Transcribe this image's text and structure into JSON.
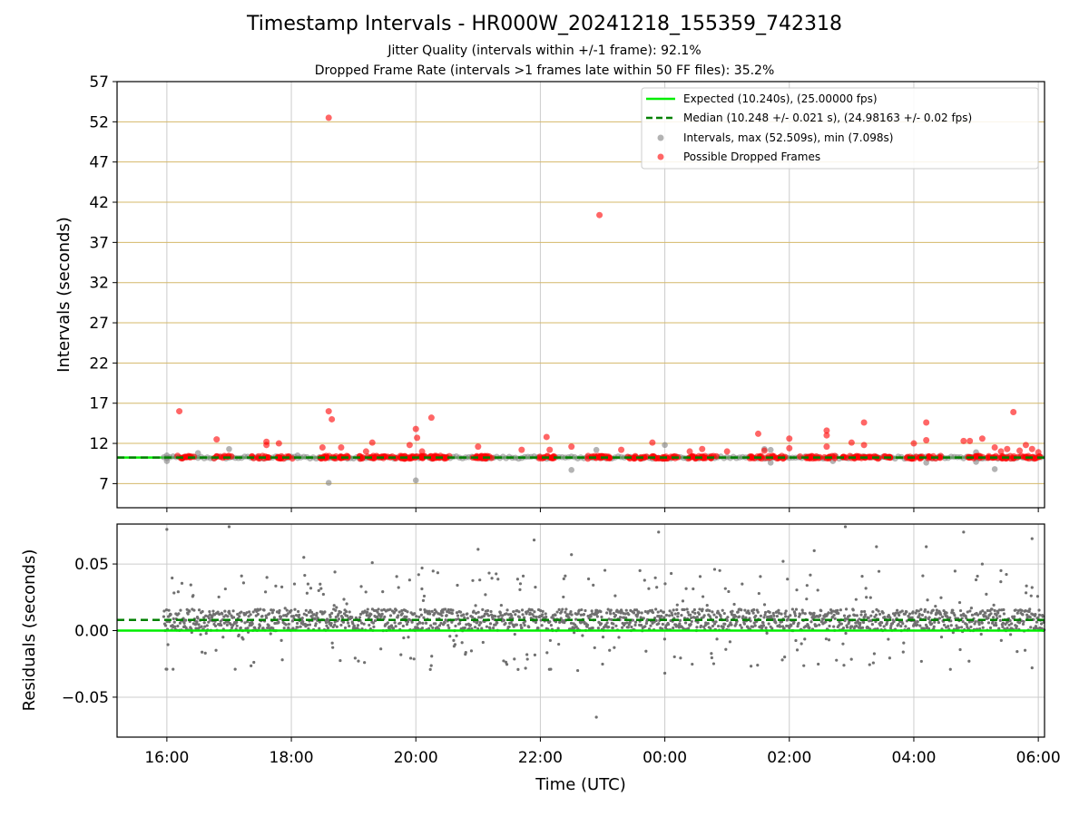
{
  "page": {
    "title": "Timestamp Intervals - HR000W_20241218_155359_742318",
    "subtitle_1": "Jitter Quality (intervals within +/-1 frame): 92.1%",
    "subtitle_2": "Dropped Frame Rate (intervals >1 frames late within 50 FF files): 35.2%"
  },
  "chart_data": [
    {
      "type": "scatter",
      "panel": "top",
      "ylabel": "Intervals (seconds)",
      "ylim": [
        4,
        57
      ],
      "xlim": [
        15.2,
        30.1
      ],
      "yticks": [
        7,
        12,
        17,
        22,
        27,
        32,
        37,
        42,
        47,
        52,
        57
      ],
      "grid": "horizontal tan lines at y ticks, vertical grey lines at x ticks",
      "legend_placement": "top-right",
      "colors": {
        "expected": "#00ee00",
        "median": "#008000",
        "intervals": "#808080",
        "dropped": "#ff0000",
        "grid_h": "#d4b86a",
        "grid_v": "#cccccc"
      },
      "reference_lines": {
        "expected_y": 10.24,
        "median_y": 10.248
      },
      "legend": [
        {
          "key": "expected",
          "label": "Expected (10.240s), (25.00000 fps)"
        },
        {
          "key": "median",
          "label": "Median (10.248 +/- 0.021 s), (24.98163 +/- 0.02 fps)"
        },
        {
          "key": "intervals",
          "label": "Intervals, max (52.509s), min (7.098s)"
        },
        {
          "key": "dropped",
          "label": "Possible Dropped Frames"
        }
      ],
      "dropped_clusters_x": [
        16.3,
        16.9,
        17.5,
        17.9,
        18.6,
        18.8,
        19.2,
        19.5,
        19.8,
        20.0,
        20.2,
        20.4,
        21.0,
        21.1,
        22.1,
        22.9,
        23.1,
        23.5,
        23.8,
        24.1,
        24.5,
        24.7,
        25.5,
        25.8,
        26.3,
        26.6,
        27.0,
        27.2,
        27.5,
        28.0,
        28.3,
        29.0,
        29.3,
        29.6,
        29.9
      ],
      "dropped_outliers": [
        {
          "x": 16.2,
          "y": 16.0
        },
        {
          "x": 16.8,
          "y": 12.5
        },
        {
          "x": 17.6,
          "y": 12.2
        },
        {
          "x": 17.8,
          "y": 12.0
        },
        {
          "x": 17.6,
          "y": 11.8
        },
        {
          "x": 18.5,
          "y": 11.5
        },
        {
          "x": 18.6,
          "y": 52.5
        },
        {
          "x": 18.6,
          "y": 16.0
        },
        {
          "x": 18.65,
          "y": 15.0
        },
        {
          "x": 18.8,
          "y": 11.5
        },
        {
          "x": 19.3,
          "y": 12.1
        },
        {
          "x": 19.2,
          "y": 11.0
        },
        {
          "x": 19.9,
          "y": 11.8
        },
        {
          "x": 20.0,
          "y": 13.8
        },
        {
          "x": 20.02,
          "y": 12.7
        },
        {
          "x": 20.1,
          "y": 11.0
        },
        {
          "x": 20.25,
          "y": 15.2
        },
        {
          "x": 21.0,
          "y": 11.6
        },
        {
          "x": 21.7,
          "y": 11.2
        },
        {
          "x": 22.1,
          "y": 12.8
        },
        {
          "x": 22.15,
          "y": 11.2
        },
        {
          "x": 22.5,
          "y": 11.6
        },
        {
          "x": 22.95,
          "y": 40.4
        },
        {
          "x": 23.3,
          "y": 11.2
        },
        {
          "x": 23.8,
          "y": 12.1
        },
        {
          "x": 24.4,
          "y": 11.0
        },
        {
          "x": 24.6,
          "y": 11.3
        },
        {
          "x": 25.0,
          "y": 11.0
        },
        {
          "x": 25.6,
          "y": 11.1
        },
        {
          "x": 25.5,
          "y": 13.2
        },
        {
          "x": 26.0,
          "y": 12.6
        },
        {
          "x": 26.0,
          "y": 11.4
        },
        {
          "x": 26.6,
          "y": 13.6
        },
        {
          "x": 26.6,
          "y": 13.0
        },
        {
          "x": 26.6,
          "y": 11.6
        },
        {
          "x": 27.0,
          "y": 12.1
        },
        {
          "x": 27.2,
          "y": 14.6
        },
        {
          "x": 27.2,
          "y": 11.8
        },
        {
          "x": 28.0,
          "y": 12.0
        },
        {
          "x": 28.2,
          "y": 14.6
        },
        {
          "x": 28.2,
          "y": 12.4
        },
        {
          "x": 28.8,
          "y": 12.3
        },
        {
          "x": 28.9,
          "y": 12.3
        },
        {
          "x": 29.1,
          "y": 12.6
        },
        {
          "x": 29.3,
          "y": 11.5
        },
        {
          "x": 29.4,
          "y": 11.0
        },
        {
          "x": 29.5,
          "y": 11.3
        },
        {
          "x": 29.6,
          "y": 15.9
        },
        {
          "x": 29.7,
          "y": 11.1
        },
        {
          "x": 29.8,
          "y": 11.8
        },
        {
          "x": 29.9,
          "y": 11.3
        },
        {
          "x": 30.0,
          "y": 10.9
        }
      ],
      "interval_outliers": [
        {
          "x": 16.0,
          "y": 9.8
        },
        {
          "x": 16.0,
          "y": 10.5
        },
        {
          "x": 16.5,
          "y": 10.8
        },
        {
          "x": 17.0,
          "y": 11.3
        },
        {
          "x": 18.1,
          "y": 10.5
        },
        {
          "x": 18.6,
          "y": 7.1
        },
        {
          "x": 20.0,
          "y": 7.4
        },
        {
          "x": 22.5,
          "y": 8.7
        },
        {
          "x": 22.9,
          "y": 11.2
        },
        {
          "x": 24.0,
          "y": 11.8
        },
        {
          "x": 25.6,
          "y": 11.3
        },
        {
          "x": 25.7,
          "y": 9.6
        },
        {
          "x": 25.7,
          "y": 11.2
        },
        {
          "x": 26.7,
          "y": 9.8
        },
        {
          "x": 28.2,
          "y": 9.6
        },
        {
          "x": 29.0,
          "y": 9.7
        },
        {
          "x": 29.3,
          "y": 8.8
        },
        {
          "x": 29.0,
          "y": 10.9
        }
      ]
    },
    {
      "type": "scatter",
      "panel": "bottom",
      "ylabel": "Residuals (seconds)",
      "xlabel": "Time (UTC)",
      "ylim": [
        -0.08,
        0.08
      ],
      "xlim": [
        15.2,
        30.1
      ],
      "x": {
        "start": 15.95,
        "end": 30.1
      },
      "yticks": [
        {
          "value": 0.05,
          "label": "0.05"
        },
        {
          "value": 0.0,
          "label": "0.00"
        },
        {
          "value": -0.05,
          "label": "−0.05"
        }
      ],
      "xticks": [
        {
          "value": 16,
          "label": "16:00"
        },
        {
          "value": 18,
          "label": "18:00"
        },
        {
          "value": 20,
          "label": "20:00"
        },
        {
          "value": 22,
          "label": "22:00"
        },
        {
          "value": 24,
          "label": "00:00"
        },
        {
          "value": 26,
          "label": "02:00"
        },
        {
          "value": 28,
          "label": "04:00"
        },
        {
          "value": 30,
          "label": "06:00"
        }
      ],
      "reference_lines": {
        "expected_y": 0.0,
        "median_y": 0.008
      },
      "residual_band": {
        "center": 0.008,
        "typical_min": -0.005,
        "typical_max": 0.022
      },
      "residual_outliers": [
        {
          "x": 16.0,
          "y": 0.076
        },
        {
          "x": 16.0,
          "y": -0.029
        },
        {
          "x": 16.1,
          "y": -0.029
        },
        {
          "x": 17.0,
          "y": 0.078
        },
        {
          "x": 17.2,
          "y": 0.041
        },
        {
          "x": 18.2,
          "y": 0.055
        },
        {
          "x": 18.7,
          "y": 0.044
        },
        {
          "x": 19.3,
          "y": 0.051
        },
        {
          "x": 19.9,
          "y": 0.038
        },
        {
          "x": 20.1,
          "y": 0.047
        },
        {
          "x": 21.0,
          "y": 0.061
        },
        {
          "x": 21.9,
          "y": 0.068
        },
        {
          "x": 22.5,
          "y": 0.057
        },
        {
          "x": 22.4,
          "y": 0.041
        },
        {
          "x": 22.9,
          "y": -0.065
        },
        {
          "x": 22.6,
          "y": -0.03
        },
        {
          "x": 23.9,
          "y": 0.074
        },
        {
          "x": 23.6,
          "y": 0.045
        },
        {
          "x": 24.8,
          "y": 0.046
        },
        {
          "x": 24.0,
          "y": -0.032
        },
        {
          "x": 25.9,
          "y": 0.052
        },
        {
          "x": 26.4,
          "y": 0.06
        },
        {
          "x": 26.9,
          "y": 0.078
        },
        {
          "x": 27.4,
          "y": 0.063
        },
        {
          "x": 28.2,
          "y": 0.063
        },
        {
          "x": 28.8,
          "y": 0.074
        },
        {
          "x": 29.1,
          "y": 0.05
        },
        {
          "x": 29.4,
          "y": 0.045
        },
        {
          "x": 29.9,
          "y": 0.069
        },
        {
          "x": 29.9,
          "y": -0.028
        }
      ]
    }
  ]
}
